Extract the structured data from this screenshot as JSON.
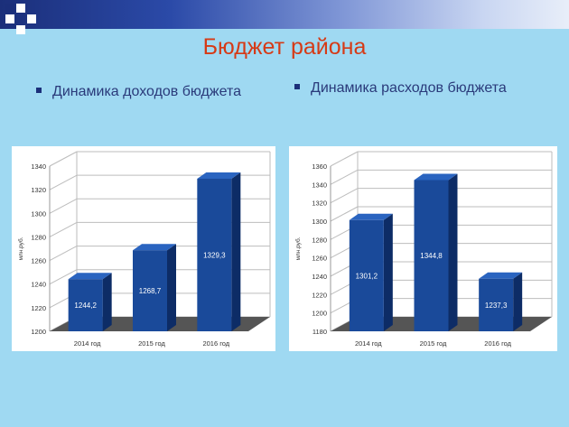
{
  "slide": {
    "title": "Бюджет района",
    "bullets": [
      "Динамика доходов бюджета",
      "Динамика расходов бюджета"
    ]
  },
  "colors": {
    "background": "#9fd9f2",
    "title": "#d63a16",
    "bar_front": "#1a4a9a",
    "bar_side": "#0d2c66",
    "bar_top": "#2a64c0",
    "floor": "#555555"
  },
  "chart_data": [
    {
      "type": "bar",
      "categories": [
        "2014 год",
        "2015 год",
        "2016 год"
      ],
      "values": [
        1244.2,
        1268.7,
        1329.3
      ],
      "value_labels": [
        "1244,2",
        "1268,7",
        "1329,3"
      ],
      "ylabel": "млн.руб.",
      "ylim": [
        1200,
        1340
      ],
      "yticks": [
        1200,
        1220,
        1240,
        1260,
        1280,
        1300,
        1320,
        1340
      ],
      "grid": true
    },
    {
      "type": "bar",
      "categories": [
        "2014 год",
        "2015 год",
        "2016 год"
      ],
      "values": [
        1301.2,
        1344.8,
        1237.3
      ],
      "value_labels": [
        "1301,2",
        "1344,8",
        "1237,3"
      ],
      "ylabel": "млн.руб.",
      "ylim": [
        1180,
        1360
      ],
      "yticks": [
        1180,
        1200,
        1220,
        1240,
        1260,
        1280,
        1300,
        1320,
        1340,
        1360
      ],
      "grid": true
    }
  ]
}
